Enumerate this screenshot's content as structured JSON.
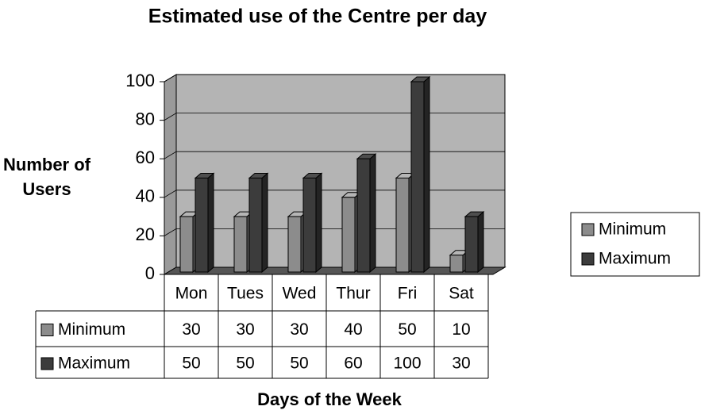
{
  "chart_data": {
    "type": "bar3d",
    "title": "Estimated use of the Centre per day",
    "ylabel": "Number of Users",
    "xlabel": "Days of the Week",
    "categories": [
      "Mon",
      "Tues",
      "Wed",
      "Thur",
      "Fri",
      "Sat"
    ],
    "series": [
      {
        "name": "Minimum",
        "color": "#8c8c8c",
        "values": [
          30,
          30,
          30,
          40,
          50,
          10
        ]
      },
      {
        "name": "Maximum",
        "color": "#3c3c3c",
        "values": [
          50,
          50,
          50,
          60,
          100,
          30
        ]
      }
    ],
    "ylim": [
      0,
      100
    ],
    "yticks": [
      0,
      20,
      40,
      60,
      80,
      100
    ],
    "grid": true,
    "legend": "right"
  }
}
